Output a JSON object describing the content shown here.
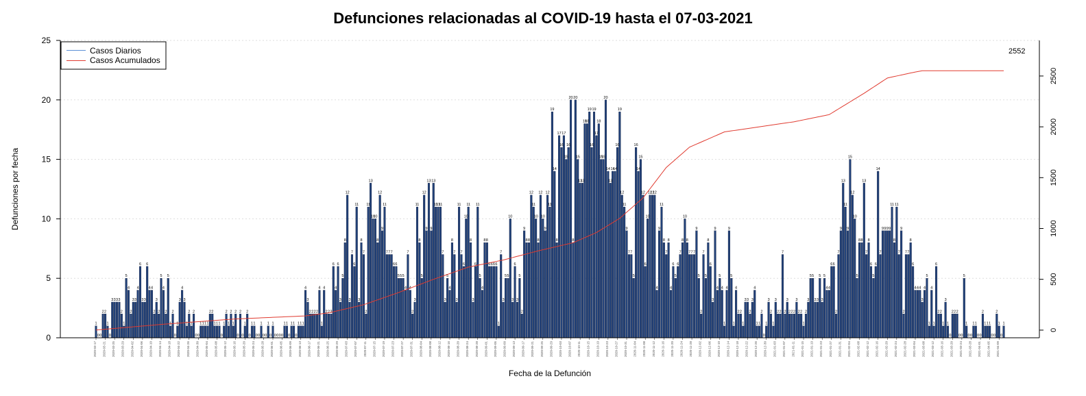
{
  "chart_data": {
    "type": "bar",
    "title": "Defunciones relacionadas al COVID-19 hasta el 07-03-2021",
    "xlabel": "Fecha de la Defunción",
    "ylabel": "Defunciones por fecha",
    "ylim": [
      0,
      25
    ],
    "yticks": [
      "0",
      "5",
      "10",
      "15",
      "20",
      "25"
    ],
    "y2lim": [
      -75,
      2850
    ],
    "y2ticks": [
      "0",
      "500",
      "1000",
      "1500",
      "2000",
      "2500"
    ],
    "grid": true,
    "legend_position": "top-left",
    "colors": {
      "bar_fill": "#22427a",
      "bar_edge": "#0d1a3a",
      "daily_line": "#5b8fd6",
      "cumulative_line": "#e03a2f",
      "grid": "#dddddd"
    },
    "start_date": "2020-03-17",
    "date_count": 356,
    "series": [
      {
        "name": "Casos Diarios",
        "values": [
          1,
          0,
          0,
          2,
          2,
          1,
          0,
          3,
          3,
          3,
          3,
          2,
          1,
          5,
          4,
          2,
          3,
          3,
          4,
          6,
          3,
          3,
          6,
          4,
          4,
          2,
          3,
          2,
          5,
          4,
          2,
          5,
          1,
          2,
          0,
          1,
          3,
          4,
          3,
          1,
          2,
          1,
          2,
          0,
          0,
          1,
          1,
          1,
          1,
          2,
          2,
          1,
          1,
          1,
          0,
          1,
          2,
          1,
          2,
          1,
          2,
          0,
          2,
          0,
          1,
          2,
          0,
          1,
          1,
          0,
          0,
          1,
          0,
          0,
          1,
          0,
          1,
          0,
          0,
          0,
          0,
          1,
          1,
          0,
          1,
          1,
          0,
          1,
          1,
          1,
          4,
          3,
          2,
          2,
          2,
          2,
          4,
          1,
          4,
          2,
          2,
          2,
          6,
          4,
          6,
          3,
          5,
          8,
          12,
          3,
          7,
          6,
          11,
          3,
          8,
          7,
          2,
          11,
          13,
          10,
          10,
          8,
          12,
          9,
          11,
          7,
          7,
          7,
          6,
          6,
          5,
          5,
          5,
          4,
          7,
          4,
          2,
          3,
          11,
          8,
          5,
          12,
          9,
          13,
          9,
          13,
          11,
          11,
          11,
          7,
          3,
          5,
          4,
          8,
          7,
          3,
          11,
          7,
          6,
          10,
          11,
          8,
          3,
          6,
          11,
          5,
          4,
          8,
          8,
          6,
          6,
          6,
          6,
          1,
          7,
          3,
          5,
          5,
          10,
          3,
          6,
          3,
          5,
          2,
          9,
          8,
          8,
          12,
          11,
          10,
          8,
          12,
          10,
          9,
          12,
          11,
          19,
          14,
          8,
          17,
          16,
          17,
          15,
          16,
          20,
          8,
          20,
          15,
          13,
          13,
          18,
          18,
          19,
          16,
          19,
          17,
          18,
          15,
          15,
          20,
          14,
          13,
          14,
          14,
          16,
          19,
          12,
          11,
          9,
          7,
          7,
          5,
          16,
          14,
          15,
          12,
          6,
          10,
          12,
          12,
          12,
          4,
          9,
          11,
          8,
          7,
          8,
          4,
          6,
          5,
          6,
          7,
          8,
          10,
          8,
          7,
          7,
          7,
          9,
          5,
          2,
          7,
          5,
          8,
          6,
          3,
          9,
          4,
          5,
          4,
          1,
          4,
          9,
          5,
          1,
          4,
          2,
          2,
          1,
          3,
          3,
          2,
          3,
          4,
          1,
          1,
          2,
          0,
          1,
          3,
          2,
          1,
          3,
          2,
          2,
          7,
          2,
          3,
          2,
          2,
          2,
          3,
          2,
          2,
          1,
          2,
          3,
          5,
          5,
          3,
          3,
          5,
          3,
          5,
          4,
          4,
          6,
          6,
          2,
          7,
          9,
          13,
          11,
          9,
          15,
          12,
          10,
          5,
          8,
          8,
          13,
          7,
          8,
          6,
          5,
          6,
          14,
          7,
          9,
          9,
          9,
          9,
          11,
          8,
          11,
          7,
          9,
          2,
          7,
          7,
          8,
          6,
          4,
          4,
          4,
          3,
          4,
          5,
          1,
          4,
          1,
          6,
          2,
          2,
          1,
          3,
          1,
          0,
          2,
          2,
          2,
          0,
          0,
          5,
          1,
          0,
          0,
          1,
          1,
          0,
          0,
          2,
          1,
          1,
          1,
          0,
          0,
          2,
          1,
          0,
          1
        ]
      },
      {
        "name": "Casos Acumulados",
        "end_label": "2552",
        "anchors": [
          [
            0,
            1
          ],
          [
            30,
            60
          ],
          [
            60,
            110
          ],
          [
            90,
            140
          ],
          [
            100,
            170
          ],
          [
            115,
            250
          ],
          [
            130,
            370
          ],
          [
            145,
            500
          ],
          [
            160,
            620
          ],
          [
            175,
            690
          ],
          [
            190,
            780
          ],
          [
            205,
            860
          ],
          [
            215,
            960
          ],
          [
            225,
            1100
          ],
          [
            235,
            1300
          ],
          [
            245,
            1600
          ],
          [
            255,
            1800
          ],
          [
            270,
            1950
          ],
          [
            285,
            2000
          ],
          [
            300,
            2050
          ],
          [
            315,
            2120
          ],
          [
            330,
            2330
          ],
          [
            340,
            2480
          ],
          [
            350,
            2530
          ],
          [
            355,
            2552
          ]
        ]
      }
    ],
    "x_tick_step": 4,
    "label_months": [
      "01",
      "02",
      "03",
      "04",
      "05",
      "06",
      "07",
      "08",
      "09",
      "10",
      "11",
      "12"
    ]
  }
}
